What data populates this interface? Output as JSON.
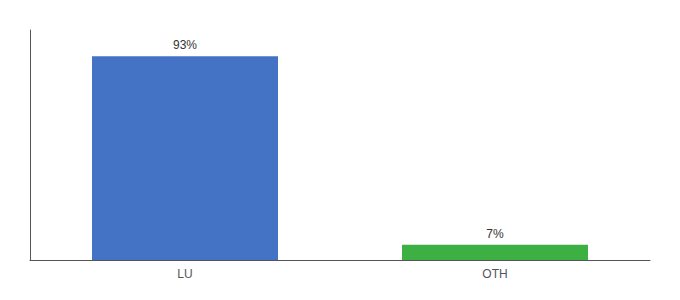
{
  "chart_data": {
    "type": "bar",
    "categories": [
      "LU",
      "OTH"
    ],
    "values": [
      93,
      7
    ],
    "value_labels": [
      "93%",
      "7%"
    ],
    "colors": [
      "#4472c4",
      "#3cb043"
    ],
    "ylim": [
      0,
      105
    ],
    "yticks": [],
    "data_labels": true,
    "tick_labels": "x",
    "grid": false
  }
}
